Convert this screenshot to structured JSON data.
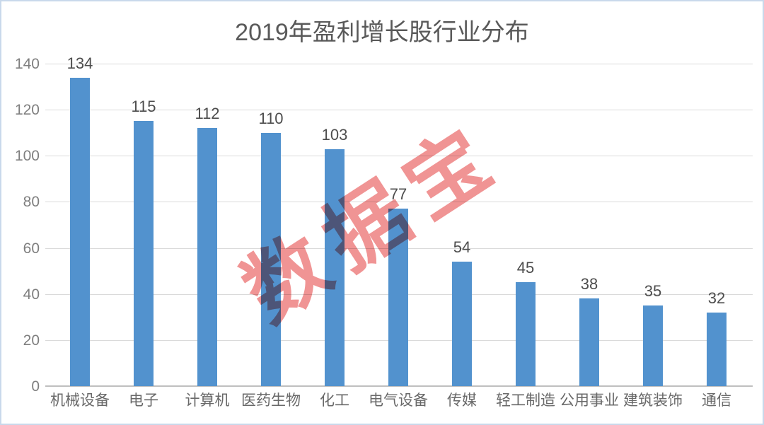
{
  "frame": {
    "background": "#ffffff",
    "border_color": "#c9d9eb"
  },
  "chart_data": {
    "type": "bar",
    "title": "2019年盈利增长股行业分布",
    "categories": [
      "机械设备",
      "电子",
      "计算机",
      "医药生物",
      "化工",
      "电气设备",
      "传媒",
      "轻工制造",
      "公用事业",
      "建筑装饰",
      "通信"
    ],
    "values": [
      134,
      115,
      112,
      110,
      103,
      77,
      54,
      45,
      38,
      35,
      32
    ],
    "xlabel": "",
    "ylabel": "",
    "ylim": [
      0,
      140
    ],
    "y_ticks": [
      0,
      20,
      40,
      60,
      80,
      100,
      120,
      140
    ],
    "grid": true,
    "legend": "none",
    "data_labels": true,
    "bar_color": "#5292CE",
    "gridline_color": "#dadada",
    "axis_line_color": "#bfbfbf",
    "title_color": "#595959",
    "tick_label_color": "#7f7f7f",
    "category_label_color": "#696969",
    "value_label_color": "#4d4d4d"
  },
  "watermark": {
    "text": "数据宝",
    "color": "#ee8585"
  }
}
